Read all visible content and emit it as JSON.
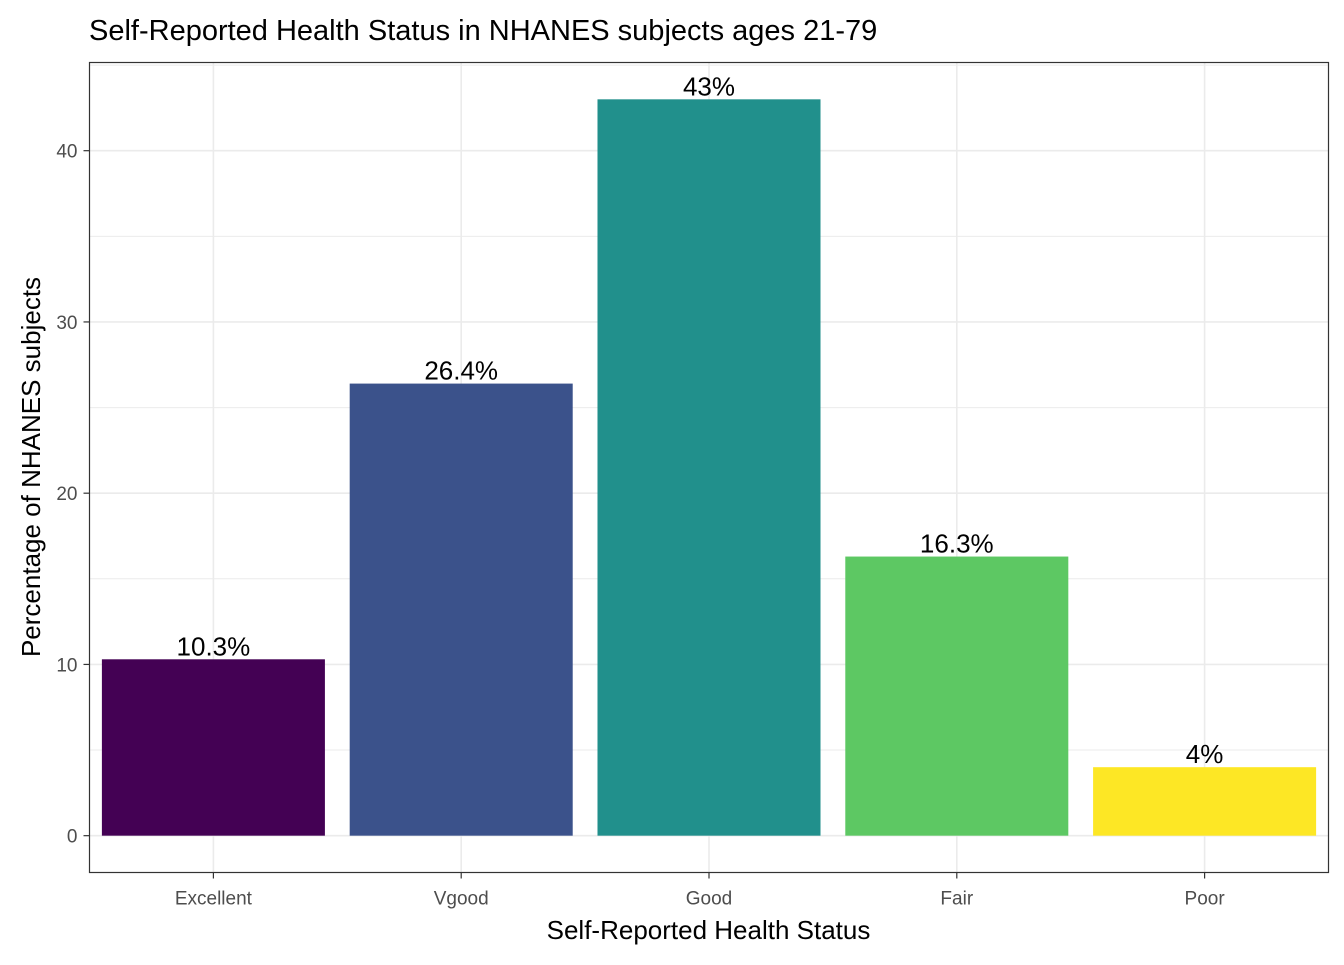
{
  "chart_data": {
    "type": "bar",
    "title": "Self-Reported Health Status in NHANES subjects ages 21-79",
    "xlabel": "Self-Reported Health Status",
    "ylabel": "Percentage of NHANES subjects",
    "categories": [
      "Excellent",
      "Vgood",
      "Good",
      "Fair",
      "Poor"
    ],
    "values": [
      10.3,
      26.4,
      43,
      16.3,
      4
    ],
    "data_labels": [
      "10.3%",
      "26.4%",
      "43%",
      "16.3%",
      "4%"
    ],
    "colors": [
      "#440154",
      "#3B528B",
      "#21908C",
      "#5DC863",
      "#FDE725"
    ],
    "ylim": [
      -2.15,
      45.15
    ],
    "yticks": [
      0,
      10,
      20,
      30,
      40
    ],
    "ytick_labels": [
      "0",
      "10",
      "20",
      "30",
      "40"
    ],
    "grid": true,
    "legend": "none"
  }
}
